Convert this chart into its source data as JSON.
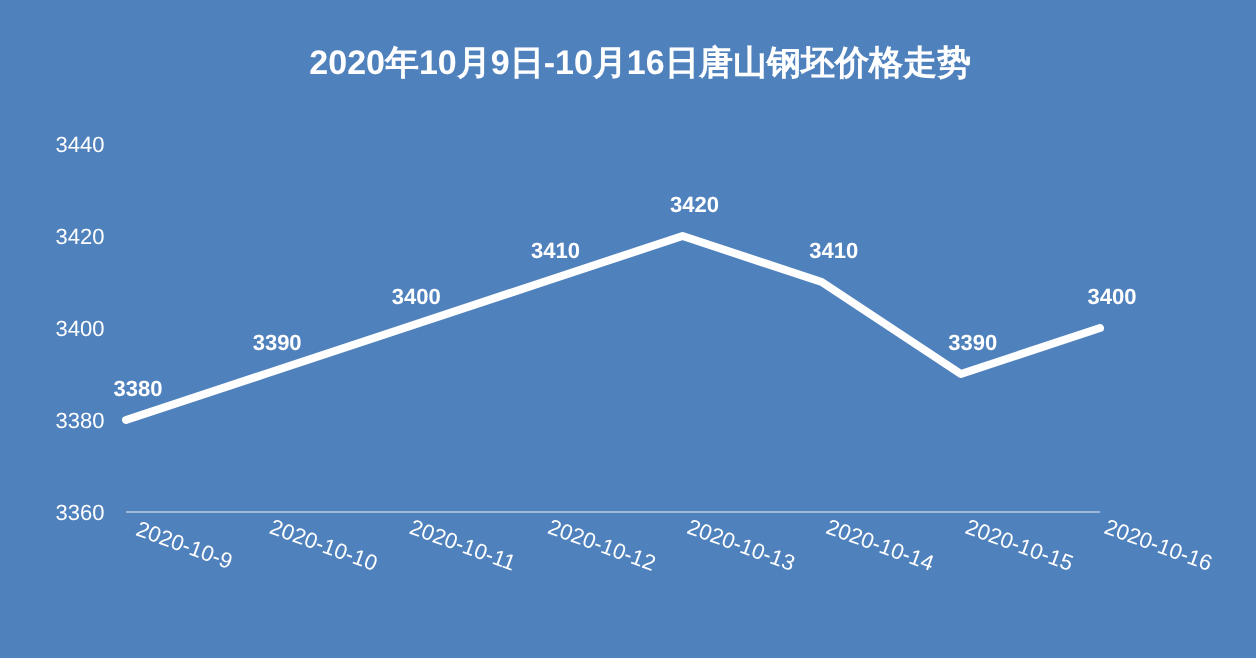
{
  "chart_data": {
    "type": "line",
    "title": "2020年10月9日-10月16日唐山钢坯价格走势",
    "categories": [
      "2020-10-9",
      "2020-10-10",
      "2020-10-11",
      "2020-10-12",
      "2020-10-13",
      "2020-10-14",
      "2020-10-15",
      "2020-10-16"
    ],
    "series": [
      {
        "color": "#ffffff",
        "values": [
          3380,
          3390,
          3400,
          3410,
          3420,
          3410,
          3390,
          3400
        ]
      }
    ],
    "ylim": [
      3360,
      3440
    ],
    "yticks": [
      3360,
      3380,
      3400,
      3420,
      3440
    ],
    "data_labels": true,
    "grid": false,
    "marker": "none",
    "line_style": "solid"
  }
}
